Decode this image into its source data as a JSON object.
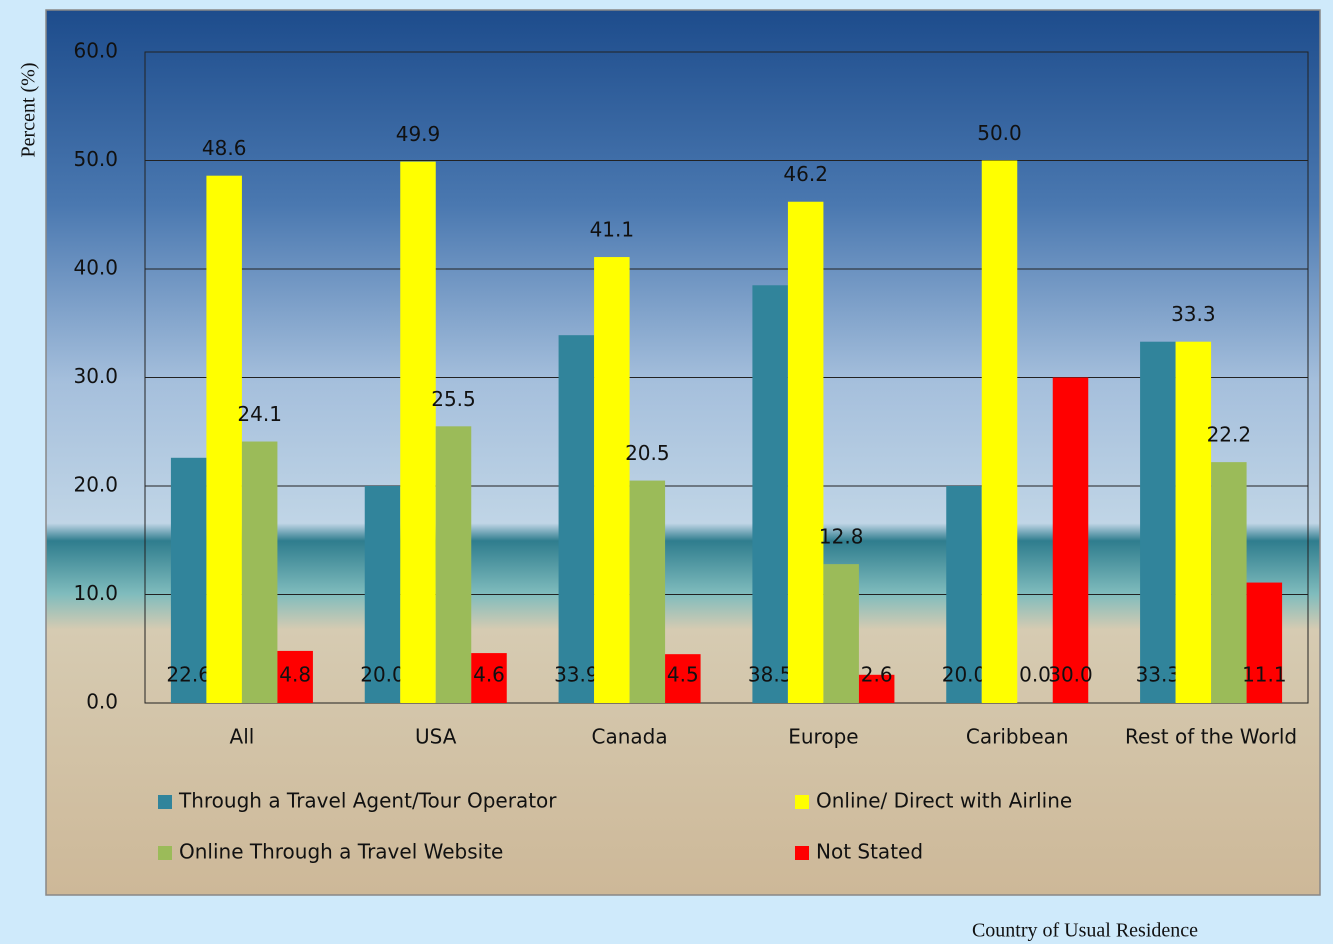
{
  "chart_data": {
    "type": "bar",
    "y_axis_label": "Percent (%)",
    "x_axis_label": "Country of Usual Residence",
    "categories": [
      "All",
      "USA",
      "Canada",
      "Europe",
      "Caribbean",
      "Rest of the World"
    ],
    "series": [
      {
        "name": "Through a Travel Agent/Tour Operator",
        "color": "#31849b",
        "values": [
          22.6,
          20.0,
          33.9,
          38.5,
          20.0,
          33.3
        ],
        "value_labels": [
          "22.6",
          "20.0",
          "33.9",
          "38.5",
          "20.0",
          "33.3"
        ]
      },
      {
        "name": "Online/ Direct with Airline",
        "color": "#ffff00",
        "values": [
          48.6,
          49.9,
          41.1,
          46.2,
          50.0,
          33.3
        ],
        "value_labels": [
          "48.6",
          "49.9",
          "41.1",
          "46.2",
          "50.0",
          "33.3"
        ]
      },
      {
        "name": "Online Through a Travel Website",
        "color": "#9bbb59",
        "values": [
          24.1,
          25.5,
          20.5,
          12.8,
          0.0,
          22.2
        ],
        "value_labels": [
          "24.1",
          "25.5",
          "20.5",
          "12.8",
          "0.0",
          "22.2"
        ]
      },
      {
        "name": "Not Stated",
        "color": "#ff0000",
        "values": [
          4.8,
          4.6,
          4.5,
          2.6,
          30.0,
          11.1
        ],
        "value_labels": [
          "4.8",
          "4.6",
          "4.5",
          "2.6",
          "30.0",
          "11.1"
        ]
      }
    ],
    "ylim": [
      0,
      60
    ],
    "yticks": [
      {
        "value": 0,
        "label": "0.0"
      },
      {
        "value": 10,
        "label": "10.0"
      },
      {
        "value": 20,
        "label": "20.0"
      },
      {
        "value": 30,
        "label": "30.0"
      },
      {
        "value": 40,
        "label": "40.0"
      },
      {
        "value": 50,
        "label": "50.0"
      },
      {
        "value": 60,
        "label": "60.0"
      }
    ],
    "grid": true,
    "legend_position": "bottom"
  }
}
